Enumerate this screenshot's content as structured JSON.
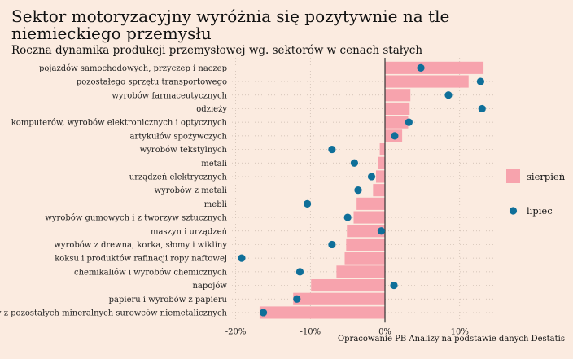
{
  "title": "Sektor motoryzacyjny wyróżnia się pozytywnie na tle niemieckiego przemysłu",
  "subtitle": "Roczna dynamika produkcji przemysłowej wg. sektorów w cenach stałych",
  "caption": "Opracowanie PB Analizy na podstawie danych Destatis",
  "colors": {
    "background": "#fbebe0",
    "bar": "#f7a3ad",
    "point": "#0f6f99",
    "zero_line": "#333333",
    "grid": "#c9b9ad"
  },
  "chart_data": {
    "type": "bar",
    "orientation": "horizontal",
    "categories": [
      "pojazdów samochodowych, przyczep i naczep",
      "pozostałego sprzętu transportowego",
      "wyrobów farmaceutycznych",
      "odzieży",
      "komputerów, wyrobów elektronicznych i optycznych",
      "artykułów spożywczych",
      "wyrobów tekstylnych",
      "metali",
      "urządzeń elektrycznych",
      "wyrobów z metali",
      "mebli",
      "wyrobów gumowych i z tworzyw sztucznych",
      "maszyn i urządzeń",
      "wyrobów z drewna, korka, słomy i wikliny",
      "koksu i produktów rafinacji ropy naftowej",
      "chemikaliów i wyrobów chemicznych",
      "napojów",
      "papieru i wyrobów z papieru",
      "wyrobów z pozostałych mineralnych surowców niemetalicznych"
    ],
    "series": [
      {
        "name": "sierpień",
        "type": "bar",
        "values": [
          13.2,
          11.2,
          3.4,
          3.3,
          3.1,
          2.3,
          -0.7,
          -0.9,
          -1.2,
          -1.6,
          -3.8,
          -4.2,
          -5.1,
          -5.2,
          -5.4,
          -6.5,
          -9.9,
          -12.3,
          -16.8
        ]
      },
      {
        "name": "lipiec",
        "type": "point",
        "values": [
          4.8,
          12.8,
          8.5,
          13.0,
          3.2,
          1.3,
          -7.1,
          -4.1,
          -1.8,
          -3.6,
          -10.4,
          -5.0,
          -0.5,
          -7.1,
          -19.2,
          -11.4,
          1.2,
          -11.8,
          -16.3
        ]
      }
    ],
    "xticks": [
      "-20%",
      "-10%",
      "0%",
      "10%"
    ],
    "xlim": [
      -20.5,
      14.5
    ],
    "grid": true,
    "legend": "right"
  }
}
